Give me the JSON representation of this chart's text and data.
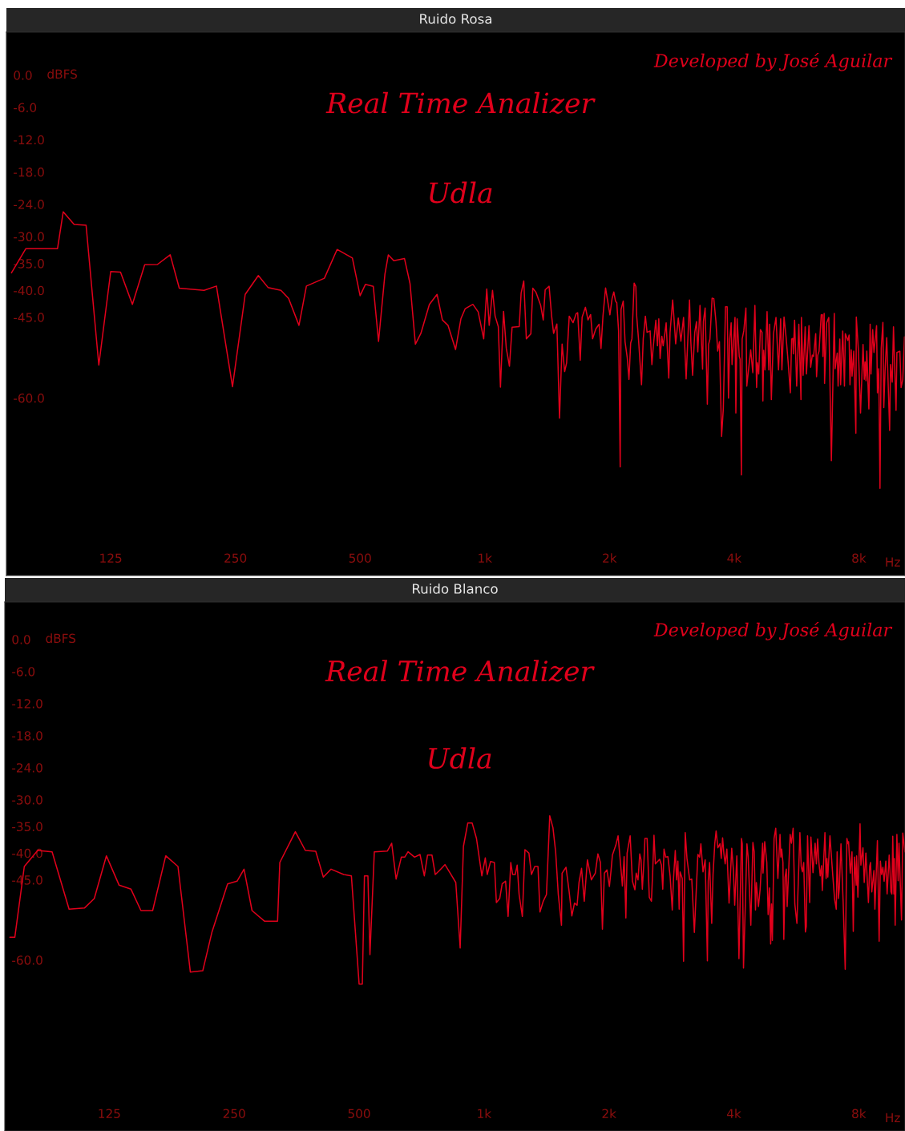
{
  "chart_data": [
    {
      "type": "line",
      "title": "Ruido Rosa",
      "xlabel": "Hz",
      "ylabel": "dBFS",
      "log": "x",
      "annotations": [
        "Developed by José Aguilar",
        "Real Time Analizer",
        "Udla"
      ],
      "xlim": [
        70,
        10340
      ],
      "ylim": [
        -93,
        8
      ],
      "xticks": [
        125,
        250,
        500,
        {
          "value": 1000,
          "label": "1k"
        },
        {
          "value": 2000,
          "label": "2k"
        },
        {
          "value": 4000,
          "label": "4k"
        },
        {
          "value": 8000,
          "label": "8k"
        }
      ],
      "yticks": [
        {
          "value": 0,
          "label": "0.0"
        },
        {
          "value": -6,
          "label": "-6.0"
        },
        {
          "value": -12,
          "label": "-12.0"
        },
        {
          "value": -18,
          "label": "-18.0"
        },
        {
          "value": -24,
          "label": "-24.0"
        },
        {
          "value": -30,
          "label": "-30.0"
        },
        {
          "value": -35,
          "label": "-35.0"
        },
        {
          "value": -40,
          "label": "-40.0"
        },
        {
          "value": -45,
          "label": "-45.0"
        },
        {
          "value": -60,
          "label": "-60.0"
        }
      ],
      "series": [
        {
          "color": "#e0001b",
          "x": [
            72,
            78,
            93,
            96,
            102,
            109,
            117,
            125,
            132,
            141,
            151,
            162,
            174,
            183,
            210,
            225,
            246,
            264,
            284,
            300,
            322,
            336,
            356,
            371,
            410,
            440,
            479,
            500,
            515,
            538,
            554,
            574,
            585,
            603,
            640,
            660,
            680,
            701,
            735,
            767,
            790,
            815,
            850,
            876,
            897,
            936,
            964,
            994,
            1011,
            1025,
            1044,
            1059,
            1078,
            1091,
            1110,
            1127,
            1147,
            1164,
            1211,
            1224,
            1242,
            1260,
            1292,
            1306,
            1330,
            1364,
            1384,
            1399,
            1430,
            1450,
            1466,
            1493,
            1515,
            1537,
            1559,
            1576,
            1599,
            1634,
            1663,
            1676,
            1700,
            1718,
            1750,
            1775,
            1801,
            1821,
            1854,
            1888,
            1908,
            1929,
            1957,
            2005,
            2029,
            2049,
            2068,
            2083,
            2104,
            2123,
            2133,
            2159,
            2181,
            2208,
            2229,
            2250,
            2266,
            2294,
            2316,
            2327,
            2350,
            2390,
            2413,
            2442,
            2465,
            2507,
            2532,
            2551,
            2588,
            2612,
            2631,
            2650,
            2676,
            2696,
            2715,
            2741,
            2760,
            2781,
            2801,
            2842,
            2862,
            2890,
            2932,
            2975,
            3019,
            3063,
            3092,
            3121,
            3144,
            3175,
            3213,
            3245,
            3268,
            3308,
            3356,
            3371,
            3404,
            3446,
            3470,
            3496,
            3538,
            3572,
            3615,
            3650,
            3686,
            3730,
            3766,
            3812,
            3848,
            3876,
            3904,
            3934,
            3953,
            3991,
            4019,
            4038,
            4067,
            4115,
            4134,
            4164,
            4182,
            4220,
            4270,
            4291,
            4385,
            4437,
            4489,
            4532,
            4552,
            4585,
            4628,
            4671,
            4693,
            4714,
            4747,
            4803,
            4850,
            4873,
            4919,
            4977,
            5047,
            5119,
            5180,
            5216,
            5278,
            5340,
            5403,
            5467,
            5506,
            5545,
            5558,
            5597,
            5663,
            5731,
            5799,
            5813,
            5868,
            5937,
            5979,
            6063,
            6120,
            6177,
            6220,
            6294,
            6324,
            6368,
            6413,
            6490,
            6535,
            6551,
            6597,
            6612,
            6690,
            6769,
            6867,
            6979,
            7012,
            7095,
            7129,
            7196,
            7229,
            7315,
            7385,
            7421,
            7525,
            7578,
            7615,
            7668,
            7705,
            7777,
            7869,
            7888,
            7982,
            8075,
            8189,
            8246,
            8284,
            8323,
            8361,
            8459,
            8519,
            8559,
            8640,
            8702,
            8829,
            8872,
            8936,
            8998,
            9060,
            9145,
            9190,
            9254,
            9341,
            9494,
            9541,
            9631,
            9699,
            9745,
            9838,
            9885,
            10049,
            10118,
            10214,
            10310
          ],
          "values": [
            -36.75,
            -32.25,
            -32.25,
            -25.4,
            -27.75,
            -27.9,
            -53.9,
            -36.5,
            -36.6,
            -42.6,
            -35.25,
            -35.2,
            -33.4,
            -39.6,
            -40,
            -39.2,
            -57.9,
            -40.75,
            -37.25,
            -39.5,
            -40,
            -41.5,
            -46.5,
            -39.2,
            -37.75,
            -32.4,
            -34,
            -41,
            -38.9,
            -39.25,
            -49.5,
            -37,
            -33.4,
            -34.5,
            -34.1,
            -38.75,
            -50,
            -48,
            -42.6,
            -40.75,
            -45.5,
            -46.5,
            -51,
            -45.25,
            -43.4,
            -42.6,
            -44,
            -49,
            -39.75,
            -46.5,
            -40,
            -44.75,
            -46.75,
            -58,
            -43.9,
            -50.75,
            -54.1,
            -46.85,
            -46.75,
            -40.5,
            -38.25,
            -49,
            -48.1,
            -39.6,
            -40.4,
            -42.75,
            -45.5,
            -39.9,
            -39.25,
            -44.75,
            -48,
            -46.25,
            -63.75,
            -50,
            -55.1,
            -53.5,
            -44.8,
            -46,
            -44.3,
            -44.15,
            -53,
            -45,
            -43.15,
            -45.5,
            -44.5,
            -49,
            -47.15,
            -46.3,
            -50.8,
            -44.8,
            -39.55,
            -44.55,
            -41.55,
            -40.3,
            -42,
            -42.3,
            -47.55,
            -72.8,
            -43.55,
            -42,
            -49.55,
            -52.55,
            -56.55,
            -49.8,
            -49,
            -38.65,
            -39.3,
            -44.8,
            -49,
            -57.55,
            -49,
            -44.8,
            -47.8,
            -47.55,
            -53.8,
            -50.55,
            -45.55,
            -50.3,
            -45.3,
            -52.65,
            -48.55,
            -50.3,
            -48.55,
            -46.05,
            -51.05,
            -56.3,
            -47.8,
            -41.8,
            -45.05,
            -49.95,
            -45.15,
            -49.45,
            -45.05,
            -56.45,
            -49.05,
            -41.8,
            -49.55,
            -55.8,
            -47.8,
            -45.8,
            -51.45,
            -42.8,
            -54.65,
            -45.8,
            -43.3,
            -61.15,
            -50.05,
            -49.05,
            -41.45,
            -41.55,
            -45.8,
            -51.3,
            -49.55,
            -67.15,
            -62.05,
            -43.05,
            -43.05,
            -60.05,
            -49.05,
            -46.05,
            -53.8,
            -49.05,
            -45.05,
            -62.8,
            -45.3,
            -52.3,
            -52.8,
            -74.3,
            -49.05,
            -47.55,
            -43.3,
            -57.8,
            -51.05,
            -55.3,
            -42.8,
            -58.05,
            -53.45,
            -55.55,
            -47.3,
            -47.8,
            -60.55,
            -51.15,
            -54.8,
            -43.95,
            -54.8,
            -46.3,
            -60.3,
            -48.05,
            -45.05,
            -54.8,
            -45.3,
            -54.8,
            -44.95,
            -48.8,
            -53.55,
            -59.05,
            -49.05,
            -48.95,
            -51.8,
            -45.55,
            -57.8,
            -46.3,
            -60.3,
            -45.05,
            -55.8,
            -46.8,
            -55.55,
            -46.55,
            -54.3,
            -52.05,
            -52.3,
            -48.05,
            -56.05,
            -52.05,
            -51.3,
            -44.55,
            -44.55,
            -52.3,
            -44.3,
            -57.3,
            -46.05,
            -45.05,
            -71.65,
            -44.3,
            -54.55,
            -51.65,
            -57.8,
            -49.05,
            -57.55,
            -47.55,
            -57.8,
            -48.05,
            -49.3,
            -48.3,
            -57.55,
            -51.05,
            -55.95,
            -51.3,
            -66.55,
            -44.95,
            -51.3,
            -62.8,
            -50.05,
            -56.55,
            -53.3,
            -56.8,
            -51.3,
            -62.05,
            -46.3,
            -55.55,
            -47.3,
            -51.55,
            -46.55,
            -59.05,
            -54.55,
            -76.8,
            -50.8,
            -45.95,
            -61.8,
            -55.05,
            -48.8,
            -66.05,
            -53.8,
            -57.05,
            -46.8,
            -52.05,
            -62.3,
            -51.55,
            -51.3,
            -58.05,
            -56.55,
            -48.65
          ]
        }
      ]
    },
    {
      "type": "line",
      "title": "Ruido Blanco",
      "xlabel": "Hz",
      "ylabel": "dBFS",
      "log": "x",
      "annotations": [
        "Developed by José Aguilar",
        "Real Time Analizer",
        "Udla"
      ],
      "xlim": [
        70,
        10340
      ],
      "ylim": [
        -92,
        7
      ],
      "xticks": [
        125,
        250,
        500,
        {
          "value": 1000,
          "label": "1k"
        },
        {
          "value": 2000,
          "label": "2k"
        },
        {
          "value": 4000,
          "label": "4k"
        },
        {
          "value": 8000,
          "label": "8k"
        }
      ],
      "yticks": [
        {
          "value": 0,
          "label": "0.0"
        },
        {
          "value": -6,
          "label": "-6.0"
        },
        {
          "value": -12,
          "label": "-12.0"
        },
        {
          "value": -18,
          "label": "-18.0"
        },
        {
          "value": -24,
          "label": "-24.0"
        },
        {
          "value": -30,
          "label": "-30.0"
        },
        {
          "value": -35,
          "label": "-35.0"
        },
        {
          "value": -40,
          "label": "-40.0"
        },
        {
          "value": -45,
          "label": "-45.0"
        },
        {
          "value": -60,
          "label": "-60.0"
        }
      ],
      "series": [
        {
          "color": "#e0001b",
          "x": [
            72,
            74,
            78,
            84,
            91,
            100,
            109,
            115,
            123,
            132,
            141,
            149,
            159,
            171,
            183,
            196,
            210,
            221,
            241,
            254,
            264,
            276,
            296,
            318,
            322,
            351,
            371,
            393,
            410,
            428,
            459,
            479,
            500,
            509,
            515,
            525,
            531,
            544,
            585,
            599,
            614,
            632,
            644,
            656,
            680,
            701,
            718,
            731,
            749,
            763,
            781,
            805,
            829,
            855,
            876,
            892,
            914,
            936,
            959,
            988,
            1007,
            1018,
            1037,
            1059,
            1071,
            1091,
            1106,
            1127,
            1143,
            1160,
            1172,
            1189,
            1202,
            1215,
            1237,
            1255,
            1283,
            1301,
            1325,
            1349,
            1364,
            1389,
            1414,
            1440,
            1466,
            1488,
            1510,
            1537,
            1542,
            1576,
            1604,
            1628,
            1652,
            1676,
            1694,
            1718,
            1744,
            1775,
            1814,
            1854,
            1881,
            1908,
            1929,
            1950,
            1978,
            2005,
            2024,
            2039,
            2078,
            2104,
            2133,
            2155,
            2176,
            2197,
            2212,
            2250,
            2278,
            2310,
            2327,
            2350,
            2373,
            2390,
            2407,
            2430,
            2442,
            2472,
            2502,
            2532,
            2551,
            2568,
            2588,
            2650,
            2676,
            2696,
            2715,
            2741,
            2774,
            2808,
            2842,
            2862,
            2890,
            2911,
            2932,
            2953,
            2968,
            3004,
            3026,
            3054,
            3084,
            3130,
            3167,
            3213,
            3276,
            3308,
            3331,
            3371,
            3412,
            3454,
            3470,
            3496,
            3538,
            3564,
            3598,
            3625,
            3660,
            3704,
            3730,
            3758,
            3784,
            3812,
            3848,
            3895,
            3953,
            3991,
            4019,
            4067,
            4115,
            4173,
            4191,
            4220,
            4270,
            4301,
            4331,
            4395,
            4446,
            4478,
            4510,
            4532,
            4585,
            4628,
            4693,
            4703,
            4747,
            4803,
            4838,
            4873,
            4907,
            4930,
            4953,
            5000,
            5047,
            5107,
            5168,
            5192,
            5216,
            5253,
            5278,
            5315,
            5352,
            5377,
            5467,
            5506,
            5558,
            5610,
            5676,
            5771,
            5813,
            5852,
            5894,
            5950,
            5979,
            6021,
            6092,
            6134,
            6206,
            6280,
            6324,
            6368,
            6413,
            6460,
            6506,
            6535,
            6631,
            6675,
            6706,
            6738,
            6818,
            6931,
            6997,
            7062,
            7095,
            7146,
            7180,
            7248,
            7335,
            7421,
            7490,
            7542,
            7560,
            7632,
            7705,
            7760,
            7814,
            7888,
            7906,
            7962,
            8057,
            8094,
            8189,
            8246,
            8323,
            8441,
            8499,
            8539,
            8600,
            8702,
            8750,
            8872,
            8958,
            9020,
            9081,
            9145,
            9210,
            9297,
            9363,
            9471,
            9566,
            9614,
            9661,
            9721,
            9745,
            9791,
            9885,
            9955,
            10002,
            10141,
            10214,
            10336
          ],
          "values": [
            -55.75,
            -55.75,
            -42.5,
            -39.5,
            -39.75,
            -50.5,
            -50.25,
            -48.5,
            -40.5,
            -46,
            -46.75,
            -50.75,
            -50.75,
            -40.5,
            -42.5,
            -62.25,
            -62,
            -54.75,
            -45.75,
            -45.25,
            -43,
            -50.75,
            -52.75,
            -52.75,
            -41.75,
            -36,
            -39.5,
            -39.65,
            -44.5,
            -43,
            -44,
            -44.25,
            -64.5,
            -64.5,
            -44.25,
            -44.25,
            -59,
            -39.75,
            -39.6,
            -38.15,
            -44.85,
            -40.75,
            -40.75,
            -39.75,
            -40.75,
            -40.25,
            -44.25,
            -40.35,
            -40.35,
            -44,
            -43.25,
            -42.15,
            -43.75,
            -45.5,
            -57.75,
            -38.75,
            -34.35,
            -34.35,
            -37.25,
            -44.25,
            -40.9,
            -44,
            -41.55,
            -41.75,
            -49.25,
            -48.5,
            -45.75,
            -45.25,
            -51.85,
            -41.75,
            -44,
            -44,
            -42.25,
            -47.75,
            -51.85,
            -39.35,
            -40,
            -44,
            -42.5,
            -42.5,
            -51,
            -49,
            -47.75,
            -33,
            -35.25,
            -39.75,
            -47.75,
            -53.5,
            -43.75,
            -42.65,
            -47.25,
            -51.75,
            -49.35,
            -49.75,
            -45.5,
            -42.85,
            -49,
            -41.25,
            -45,
            -43.75,
            -40.15,
            -41.75,
            -54.25,
            -43.75,
            -43.15,
            -46.25,
            -43.15,
            -40.35,
            -38.5,
            -36.75,
            -42,
            -46.15,
            -40.65,
            -52.15,
            -40,
            -36.75,
            -45.25,
            -46.85,
            -43.75,
            -45,
            -40.15,
            -41.25,
            -46.75,
            -41.25,
            -37.25,
            -37.25,
            -48.25,
            -49,
            -43,
            -36.65,
            -42,
            -41.15,
            -42.25,
            -46.75,
            -39.25,
            -40.75,
            -40.65,
            -44.25,
            -50.65,
            -44.75,
            -39.5,
            -45,
            -41.5,
            -50.5,
            -43.5,
            -44.75,
            -60.25,
            -36.15,
            -41,
            -45,
            -44.85,
            -54.85,
            -40.25,
            -40.75,
            -38.25,
            -43.5,
            -41.25,
            -60.15,
            -45.25,
            -41.75,
            -53.15,
            -44,
            -38.25,
            -35.85,
            -39,
            -38.25,
            -41,
            -37.15,
            -40,
            -42,
            -39.25,
            -49.35,
            -39.1,
            -43.25,
            -49.75,
            -40.5,
            -59.75,
            -37.25,
            -38.25,
            -61.5,
            -47.75,
            -38.25,
            -40.75,
            -53.5,
            -38,
            -39.75,
            -50.65,
            -45.5,
            -50,
            -46.75,
            -38.15,
            -43.75,
            -37.85,
            -41.75,
            -51.5,
            -46.5,
            -57,
            -49.5,
            -56.35,
            -37.25,
            -35.35,
            -44.75,
            -36.5,
            -40.75,
            -39.25,
            -41.75,
            -56.15,
            -44.5,
            -43,
            -50,
            -36.5,
            -38.15,
            -35.35,
            -49.5,
            -53.15,
            -36.15,
            -42.5,
            -43.5,
            -41.75,
            -54.75,
            -53.75,
            -36.75,
            -49.25,
            -37,
            -43.65,
            -38.15,
            -42,
            -37.35,
            -41.75,
            -44.25,
            -42.35,
            -47,
            -36.15,
            -44.75,
            -41,
            -44.5,
            -36.75,
            -44.5,
            -48.65,
            -50.5,
            -39.75,
            -48.5,
            -46.65,
            -38.25,
            -49,
            -61.75,
            -37.25,
            -38.25,
            -37.85,
            -43.75,
            -39.75,
            -54.65,
            -40.75,
            -46,
            -40.5,
            -48.25,
            -34.5,
            -42.25,
            -39,
            -45.5,
            -40,
            -49.25,
            -42.5,
            -41.75,
            -47.25,
            -43.25,
            -50.5,
            -37.65,
            -56.5,
            -41.5,
            -44,
            -42.65,
            -45.25,
            -41.5,
            -47.65,
            -40.35,
            -47.25,
            -47.65,
            -36.85,
            -47.65,
            -41,
            -53.5,
            -36.5,
            -45.15,
            -38.15,
            -52.5,
            -36.25,
            -39.75
          ]
        }
      ]
    }
  ]
}
